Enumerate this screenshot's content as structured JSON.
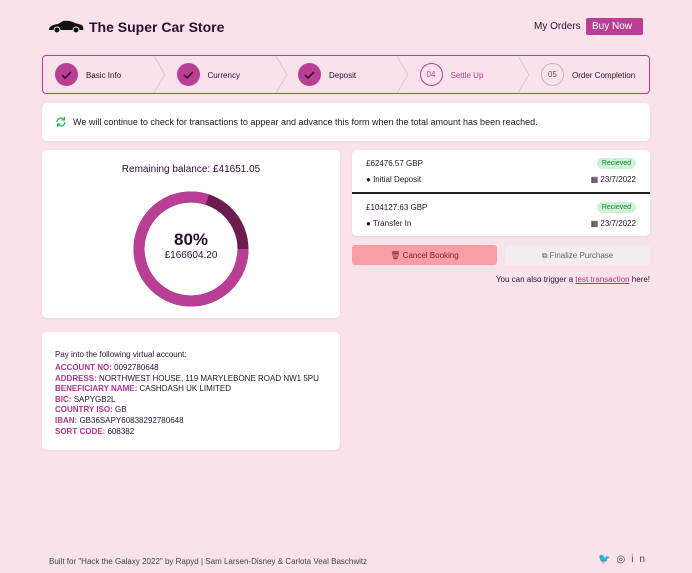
{
  "header": {
    "title": "The Super Car Store",
    "nav": [
      "My Orders",
      "Buy Now"
    ]
  },
  "steps": [
    {
      "label": "Basic Info"
    },
    {
      "label": "Currency"
    },
    {
      "label": "Deposit"
    },
    {
      "number": "04",
      "label": "Settle Up"
    },
    {
      "number": "05",
      "label": "Order Completion"
    }
  ],
  "notice": "We will continue to check for transactions to appear and advance this form when the total amount has been reached.",
  "balance": {
    "title": "Remaining balance: £41651.05",
    "progress": {
      "value": 80,
      "label": "80%"
    },
    "amount": "£166604.20"
  },
  "transactions": [
    {
      "amount": "£62476.57 GBP",
      "status": "Recieved",
      "type": "Initial Deposit",
      "date": "23/7/2022"
    },
    {
      "amount": "£104127.63 GBP",
      "status": "Recieved",
      "type": "Transfer In",
      "date": "23/7/2022"
    }
  ],
  "buttons": {
    "cancel": "Cancel Booking",
    "finalize": "Finalize Purchase"
  },
  "test": {
    "before": "You can also trigger a",
    "link": "test transaction",
    "after": "here!"
  },
  "account": {
    "intro": "Pay into the following virtual account:",
    "fields": [
      {
        "label": "ACCOUNT NO:",
        "value": "0092780648"
      },
      {
        "label": "ADDRESS:",
        "value": "NORTHWEST HOUSE, 119 MARYLEBONE ROAD NW1 5PU"
      },
      {
        "label": "BENEFICIARY NAME:",
        "value": "CASHDASH UK LIMITED"
      },
      {
        "label": "BIC:",
        "value": "SAPYGB2L"
      },
      {
        "label": "COUNTRY ISO:",
        "value": "GB"
      },
      {
        "label": "IBAN:",
        "value": "GB36SAPY60838292780648"
      },
      {
        "label": "SORT CODE:",
        "value": "608382"
      }
    ]
  },
  "footer": "Built for \"Hack the Galaxy 2022\" by Rapyd | Sam Larsen-Disney & Carlota Veal Baschwitz"
}
